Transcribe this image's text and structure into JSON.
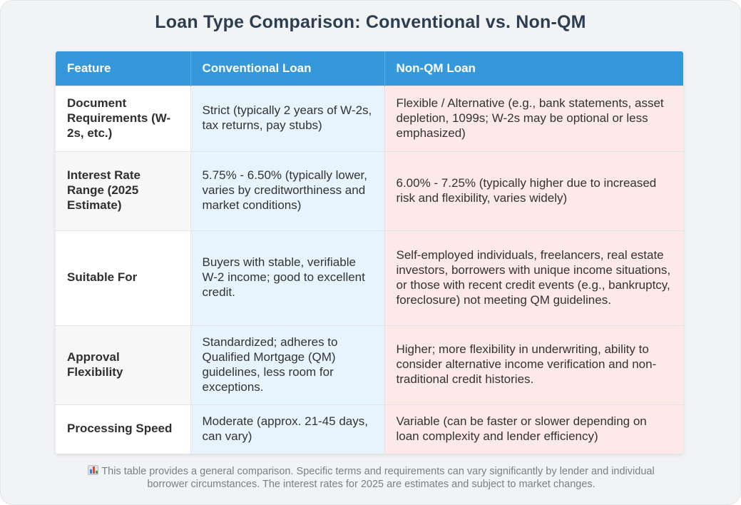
{
  "title": "Loan Type Comparison: Conventional vs. Non-QM",
  "table": {
    "headers": [
      "Feature",
      "Conventional Loan",
      "Non-QM Loan"
    ],
    "rows": [
      {
        "feature": "Document Requirements (W-2s, etc.)",
        "conventional": "Strict (typically 2 years of W-2s, tax returns, pay stubs)",
        "nonqm": "Flexible / Alternative (e.g., bank statements, asset depletion, 1099s; W-2s may be optional or less emphasized)"
      },
      {
        "feature": "Interest Rate Range (2025 Estimate)",
        "conventional": "5.75% - 6.50% (typically lower, varies by creditworthiness and market conditions)",
        "nonqm": "6.00% - 7.25% (typically higher due to increased risk and flexibility, varies widely)"
      },
      {
        "feature": "Suitable For",
        "conventional": "Buyers with stable, verifiable W-2 income; good to excellent credit.",
        "nonqm": "Self-employed individuals, freelancers, real estate investors, borrowers with unique income situations, or those with recent credit events (e.g., bankruptcy, foreclosure) not meeting QM guidelines."
      },
      {
        "feature": "Approval Flexibility",
        "conventional": "Standardized; adheres to Qualified Mortgage (QM) guidelines, less room for exceptions.",
        "nonqm": "Higher; more flexibility in underwriting, ability to consider alternative income verification and non-traditional credit histories."
      },
      {
        "feature": "Processing Speed",
        "conventional": "Moderate (approx. 21-45 days, can vary)",
        "nonqm": "Variable (can be faster or slower depending on loan complexity and lender efficiency)"
      }
    ]
  },
  "footnote": {
    "icon": "bar-chart-icon",
    "text": "This table provides a general comparison. Specific terms and requirements can vary significantly by lender and individual borrower circumstances. The interest rates for 2025 are estimates and subject to market changes."
  },
  "colors": {
    "header_bg": "#3498db",
    "conventional_bg": "#e8f4fd",
    "nonqm_bg": "#fde9e8",
    "title": "#2c3e50"
  }
}
